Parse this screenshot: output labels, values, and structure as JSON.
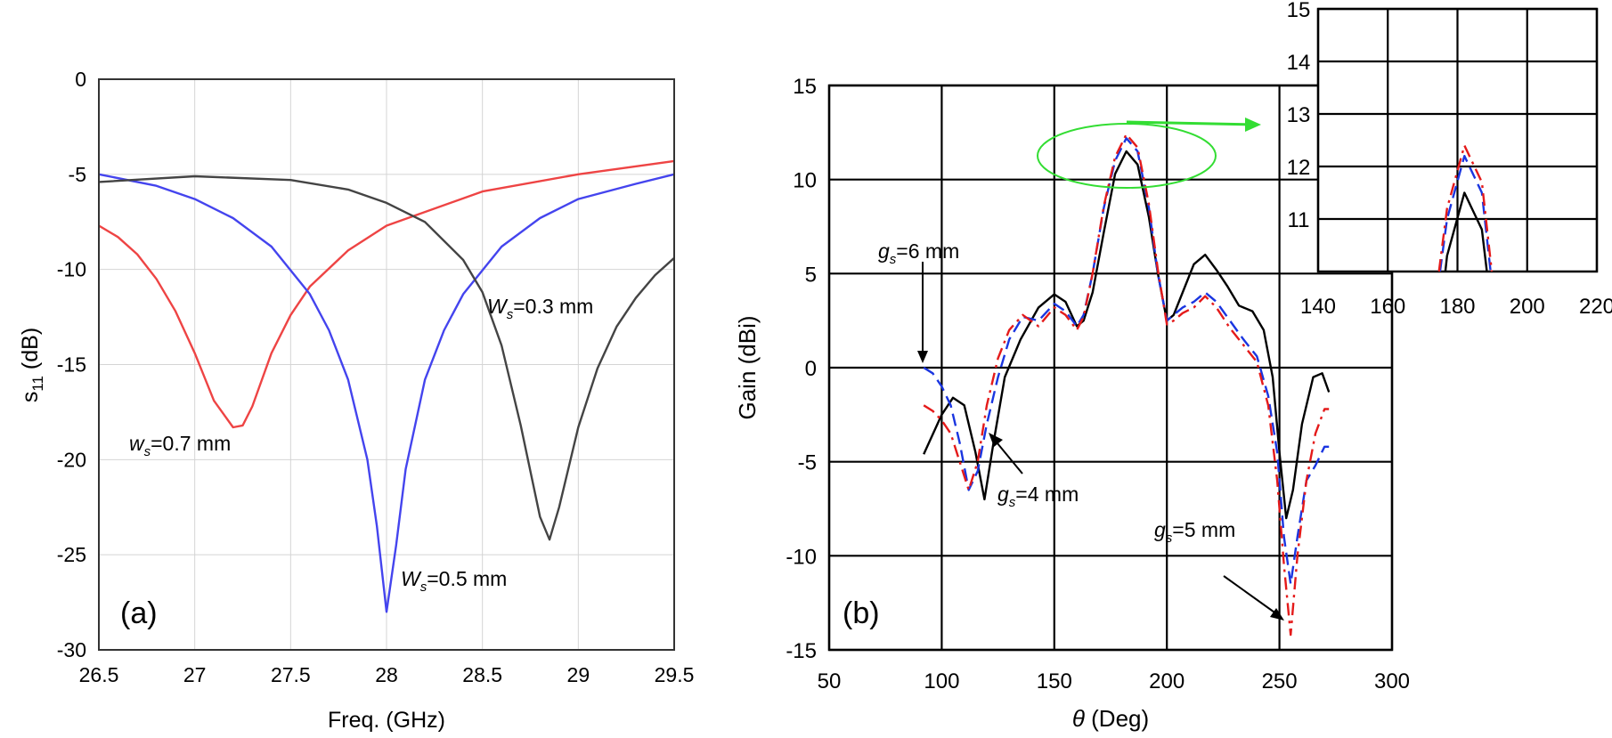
{
  "chart_data": [
    {
      "type": "line",
      "panel_label": "(a)",
      "xlabel": "Freq. (GHz)",
      "ylabel": "s11 (dB)",
      "ylabel_main": "s",
      "ylabel_sub": "11",
      "ylabel_unit": " (dB)",
      "xlim": [
        26.5,
        29.5
      ],
      "ylim": [
        -30,
        0
      ],
      "x_ticks": [
        "26.5",
        "27",
        "27.5",
        "28",
        "28.5",
        "29",
        "29.5"
      ],
      "y_ticks": [
        "0",
        "-5",
        "-10",
        "-15",
        "-20",
        "-25",
        "-30"
      ],
      "grid": true,
      "series": [
        {
          "color": "#ee4444",
          "x": [
            26.5,
            26.6,
            26.7,
            26.8,
            26.9,
            27.0,
            27.1,
            27.2,
            27.25,
            27.3,
            27.4,
            27.5,
            27.6,
            27.8,
            28.0,
            28.5,
            29.0,
            29.5
          ],
          "y": [
            -7.7,
            -8.3,
            -9.2,
            -10.5,
            -12.2,
            -14.4,
            -16.9,
            -18.3,
            -18.2,
            -17.2,
            -14.4,
            -12.4,
            -10.9,
            -9.0,
            -7.7,
            -5.9,
            -5.0,
            -4.3
          ]
        },
        {
          "color": "#4444ee",
          "x": [
            26.5,
            26.8,
            27.0,
            27.2,
            27.4,
            27.6,
            27.7,
            27.8,
            27.9,
            27.95,
            28.0,
            28.05,
            28.1,
            28.2,
            28.3,
            28.4,
            28.6,
            28.8,
            29.0,
            29.3,
            29.5
          ],
          "y": [
            -5.0,
            -5.6,
            -6.3,
            -7.3,
            -8.8,
            -11.3,
            -13.2,
            -15.8,
            -20.0,
            -23.5,
            -28.0,
            -24.5,
            -20.5,
            -15.8,
            -13.2,
            -11.3,
            -8.8,
            -7.3,
            -6.3,
            -5.5,
            -5.0
          ]
        },
        {
          "color": "#444444",
          "x": [
            26.5,
            27.0,
            27.5,
            27.8,
            28.0,
            28.2,
            28.4,
            28.5,
            28.6,
            28.7,
            28.8,
            28.85,
            28.9,
            29.0,
            29.1,
            29.2,
            29.3,
            29.4,
            29.5
          ],
          "y": [
            -5.4,
            -5.1,
            -5.3,
            -5.8,
            -6.5,
            -7.5,
            -9.5,
            -11.2,
            -14.0,
            -18.2,
            -23.0,
            -24.2,
            -22.5,
            -18.3,
            -15.2,
            -13.0,
            -11.5,
            -10.3,
            -9.4
          ]
        }
      ],
      "annotations": [
        {
          "main": "w",
          "sub": "s",
          "rest": "=0.7 mm"
        },
        {
          "main": "W",
          "sub": "s",
          "rest": "=0.5 mm"
        },
        {
          "main": "W",
          "sub": "s",
          "rest": "=0.3 mm"
        }
      ]
    },
    {
      "type": "line",
      "panel_label": "(b)",
      "xlabel": "θ (Deg)",
      "xlabel_symbol": "θ",
      "xlabel_rest": " (Deg)",
      "ylabel": "Gain (dBi)",
      "xlim": [
        50,
        300
      ],
      "ylim": [
        -15,
        15
      ],
      "x_ticks": [
        "50",
        "100",
        "150",
        "200",
        "250",
        "300"
      ],
      "y_ticks": [
        "15",
        "10",
        "5",
        "0",
        "-5",
        "-10",
        "-15"
      ],
      "grid": true,
      "series": [
        {
          "color": "#000000",
          "dash": "solid",
          "x": [
            92,
            100,
            105,
            110,
            115,
            119,
            123,
            128,
            135,
            143,
            150,
            155,
            160,
            163,
            167,
            172,
            177,
            182,
            187,
            192,
            196,
            200,
            203,
            207,
            212,
            217,
            222,
            227,
            232,
            238,
            243,
            247,
            250,
            253,
            256,
            260,
            265,
            269,
            272
          ],
          "y": [
            -4.6,
            -2.5,
            -1.6,
            -2.0,
            -4.5,
            -7.0,
            -4.0,
            -0.5,
            1.5,
            3.2,
            3.9,
            3.5,
            2.2,
            2.5,
            4.0,
            7.2,
            10.3,
            11.5,
            10.8,
            8.0,
            5.0,
            2.5,
            2.8,
            4.0,
            5.5,
            6.0,
            5.2,
            4.3,
            3.3,
            3.0,
            2.0,
            -0.5,
            -4.5,
            -8.0,
            -6.5,
            -3.0,
            -0.5,
            -0.3,
            -1.3
          ]
        },
        {
          "color": "#1a35e0",
          "dash": "dashed",
          "x": [
            92,
            96,
            100,
            104,
            108,
            112,
            116,
            120,
            125,
            130,
            136,
            143,
            150,
            155,
            160,
            163,
            167,
            172,
            177,
            182,
            187,
            192,
            196,
            200,
            203,
            207,
            212,
            217,
            222,
            228,
            234,
            240,
            245,
            249,
            252,
            255,
            258,
            262,
            266,
            270,
            272
          ],
          "y": [
            0.0,
            -0.3,
            -1.0,
            -2.0,
            -4.0,
            -6.5,
            -5.5,
            -3.0,
            -0.5,
            1.5,
            2.7,
            2.5,
            3.4,
            3.0,
            2.2,
            2.8,
            5.0,
            8.5,
            11.0,
            12.2,
            11.5,
            8.5,
            5.0,
            2.5,
            2.8,
            3.2,
            3.5,
            4.0,
            3.5,
            2.5,
            1.5,
            0.6,
            -1.5,
            -4.5,
            -9.0,
            -11.5,
            -9.0,
            -6.0,
            -5.2,
            -4.2,
            -4.2
          ]
        },
        {
          "color": "#e41a1a",
          "dash": "dashdot",
          "x": [
            92,
            96,
            100,
            104,
            108,
            112,
            116,
            120,
            125,
            130,
            136,
            143,
            150,
            155,
            160,
            163,
            167,
            172,
            177,
            182,
            187,
            192,
            196,
            200,
            203,
            207,
            212,
            217,
            222,
            228,
            234,
            240,
            245,
            249,
            252,
            255,
            258,
            262,
            266,
            270,
            272
          ],
          "y": [
            -2.0,
            -2.3,
            -2.8,
            -3.5,
            -5.0,
            -6.5,
            -5.0,
            -2.0,
            0.5,
            2.0,
            2.8,
            2.2,
            3.2,
            2.8,
            2.0,
            2.7,
            5.0,
            8.6,
            11.2,
            12.4,
            11.7,
            8.7,
            5.2,
            2.3,
            2.5,
            2.9,
            3.2,
            3.8,
            3.2,
            2.1,
            1.2,
            0.3,
            -2.0,
            -6.0,
            -10.5,
            -14.2,
            -10.0,
            -6.0,
            -3.5,
            -2.2,
            -2.2
          ]
        }
      ],
      "annotations": [
        {
          "main": "g",
          "sub": "s",
          "rest": "=6 mm"
        },
        {
          "main": "g",
          "sub": "s",
          "rest": "=4 mm"
        },
        {
          "main": "g",
          "sub": "s",
          "rest": "=5 mm"
        }
      ],
      "inset": {
        "xlim": [
          140,
          220
        ],
        "ylim": [
          10,
          15
        ],
        "x_ticks": [
          "140",
          "160",
          "180",
          "200",
          "220"
        ],
        "y_ticks": [
          "15",
          "14",
          "13",
          "12",
          "11"
        ],
        "grid": true
      }
    }
  ]
}
